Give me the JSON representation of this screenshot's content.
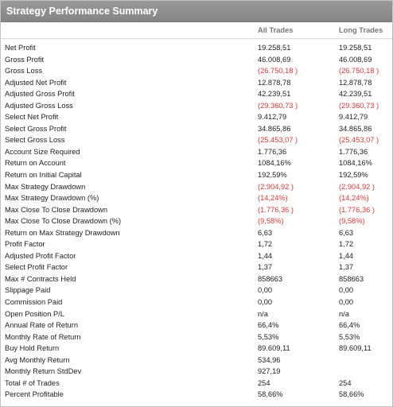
{
  "title": "Strategy Performance Summary",
  "columns": [
    "All Trades",
    "Long Trades"
  ],
  "negative_color": "#e23636",
  "rows": [
    {
      "label": "Net Profit",
      "all": "19.258,51",
      "long": "19.258,51",
      "neg": false
    },
    {
      "label": "Gross Profit",
      "all": "46.008,69",
      "long": "46.008,69",
      "neg": false
    },
    {
      "label": "Gross Loss",
      "all": "(26.750,18 )",
      "long": "(26.750,18 )",
      "neg": true
    },
    {
      "label": "Adjusted Net Profit",
      "all": "12.878,78",
      "long": "12.878,78",
      "neg": false
    },
    {
      "label": "Adjusted Gross Profit",
      "all": "42.239,51",
      "long": "42.239,51",
      "neg": false
    },
    {
      "label": "Adjusted Gross Loss",
      "all": "(29.360,73 )",
      "long": "(29.360,73 )",
      "neg": true
    },
    {
      "label": "Select Net Profit",
      "all": "9.412,79",
      "long": "9.412,79",
      "neg": false
    },
    {
      "label": "Select Gross Profit",
      "all": "34.865,86",
      "long": "34.865,86",
      "neg": false
    },
    {
      "label": "Select Gross Loss",
      "all": "(25.453,07 )",
      "long": "(25.453,07 )",
      "neg": true
    },
    {
      "label": "Account Size Required",
      "all": "1.776,36",
      "long": "1.776,36",
      "neg": false
    },
    {
      "label": "Return on Account",
      "all": "1084,16%",
      "long": "1084,16%",
      "neg": false
    },
    {
      "label": "Return on Initial Capital",
      "all": "192,59%",
      "long": "192,59%",
      "neg": false
    },
    {
      "label": "Max Strategy Drawdown",
      "all": "(2.904,92 )",
      "long": "(2.904,92 )",
      "neg": true
    },
    {
      "label": "Max Strategy Drawdown (%)",
      "all": "(14,24%)",
      "long": "(14,24%)",
      "neg": true
    },
    {
      "label": "Max Close To Close Drawdown",
      "all": "(1.776,36 )",
      "long": "(1.776,36 )",
      "neg": true
    },
    {
      "label": "Max Close To Close Drawdown (%)",
      "all": "(9,58%)",
      "long": "(9,58%)",
      "neg": true
    },
    {
      "label": "Return on Max Strategy Drawdown",
      "all": "6,63",
      "long": "6,63",
      "neg": false
    },
    {
      "label": "Profit Factor",
      "all": "1,72",
      "long": "1,72",
      "neg": false
    },
    {
      "label": "Adjusted Profit Factor",
      "all": "1,44",
      "long": "1,44",
      "neg": false
    },
    {
      "label": "Select Profit Factor",
      "all": "1,37",
      "long": "1,37",
      "neg": false
    },
    {
      "label": "Max # Contracts Held",
      "all": "858663",
      "long": "858663",
      "neg": false
    },
    {
      "label": "Slippage Paid",
      "all": "0,00",
      "long": "0,00",
      "neg": false
    },
    {
      "label": "Commission Paid",
      "all": "0,00",
      "long": "0,00",
      "neg": false
    },
    {
      "label": "Open Position P/L",
      "all": "n/a",
      "long": "n/a",
      "neg": false
    },
    {
      "label": "Annual Rate of Return",
      "all": "66,4%",
      "long": "66,4%",
      "neg": false
    },
    {
      "label": "Monthly Rate of Return",
      "all": "5,53%",
      "long": "5,53%",
      "neg": false
    },
    {
      "label": "Buy  Hold Return",
      "all": "89.609,11",
      "long": "89.609,11",
      "neg": false
    },
    {
      "label": "Avg Monthly Return",
      "all": "534,96",
      "long": "",
      "neg": false
    },
    {
      "label": "Monthly Return StdDev",
      "all": "927,19",
      "long": "",
      "neg": false
    },
    {
      "label": "Total # of Trades",
      "all": "254",
      "long": "254",
      "neg": false
    },
    {
      "label": "Percent Profitable",
      "all": "58,66%",
      "long": "58,66%",
      "neg": false
    }
  ]
}
